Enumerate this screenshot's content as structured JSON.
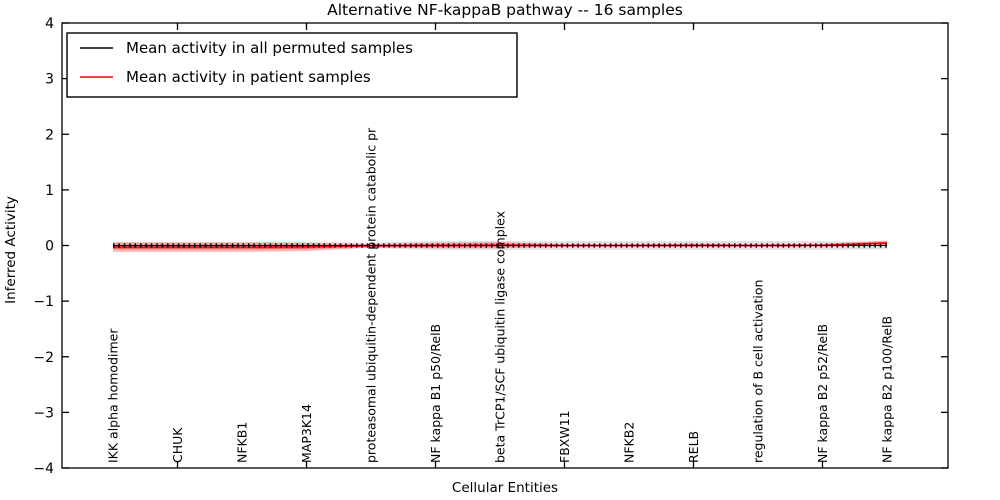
{
  "title": "Alternative NF-kappaB pathway -- 16 samples",
  "chart_data": {
    "type": "line",
    "title": "Alternative NF-kappaB pathway -- 16 samples",
    "xlabel": "Cellular Entities",
    "ylabel": "Inferred Activity",
    "ylim": [
      -4,
      4
    ],
    "yticks": [
      4,
      3,
      2,
      1,
      0,
      -1,
      -2,
      -3,
      -4
    ],
    "ytick_labels": [
      "4",
      "3",
      "2",
      "1",
      "0",
      "−1",
      "−2",
      "−3",
      "−4"
    ],
    "grid": false,
    "legend_position": "upper left",
    "x_axis_tick_category_indices": [
      1,
      3,
      5,
      7,
      9,
      11
    ],
    "categories": [
      "IKK alpha homodimer",
      "CHUK",
      "NFKB1",
      "MAP3K14",
      "proteasomal ubiquitin-dependent protein catabolic pr",
      "NF kappa B1 p50/RelB",
      "beta TrCP1/SCF ubiquitin ligase complex",
      "FBXW11",
      "NFKB2",
      "RELB",
      "regulation of B cell activation",
      "NF kappa B2 p52/RelB",
      "NF kappa B2 p100/RelB"
    ],
    "series": [
      {
        "name": "Mean activity in all permuted samples",
        "color": "#000000",
        "line_style": "solid-with-tick-markers",
        "values": [
          0,
          0,
          0,
          0,
          0,
          0,
          0,
          0,
          0,
          0,
          0,
          0,
          0
        ],
        "band_halfwidth": [
          0.06,
          0.06,
          0.06,
          0.06,
          0.05,
          0.08,
          0.08,
          0.08,
          0.08,
          0.08,
          0.08,
          0.08,
          0.065
        ],
        "band_color": "#a0a0a0",
        "band_opacity": 0.3
      },
      {
        "name": "Mean activity in patient samples",
        "color": "#ff0000",
        "line_style": "solid",
        "values": [
          -0.03,
          -0.03,
          -0.03,
          -0.025,
          -0.005,
          0.0,
          0.005,
          0.0,
          0.0,
          0.003,
          0.0,
          0.005,
          0.045
        ],
        "band_halfwidth": [
          0.085,
          0.085,
          0.085,
          0.075,
          0.03,
          0.05,
          0.055,
          0.022,
          0.02,
          0.028,
          0.02,
          0.025,
          0.045
        ],
        "band_color": "#ff0000",
        "band_opacity": 0.28
      }
    ]
  },
  "legend": {
    "items": [
      {
        "label": "Mean activity in all permuted samples",
        "color": "#000000"
      },
      {
        "label": "Mean activity in patient samples",
        "color": "#ff0000"
      }
    ]
  }
}
